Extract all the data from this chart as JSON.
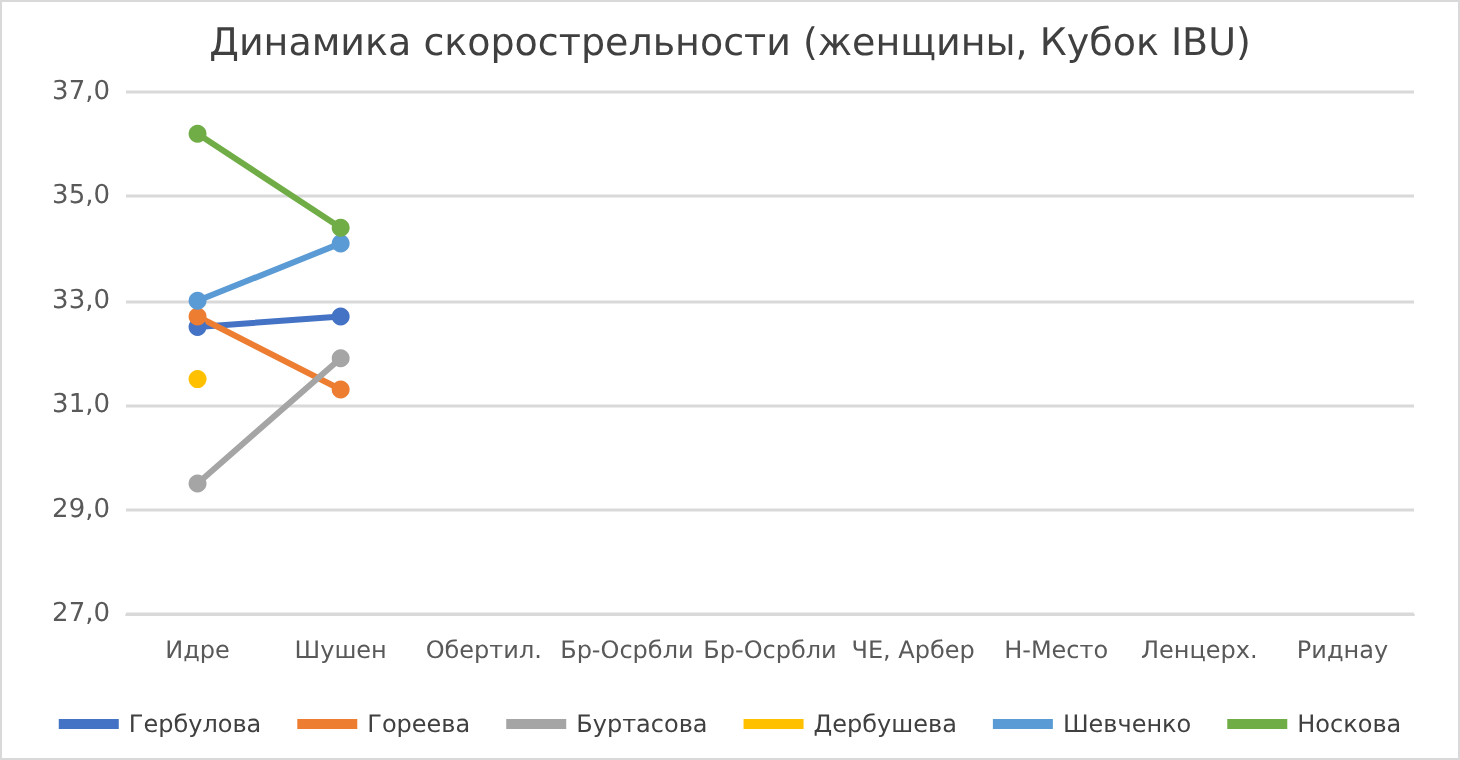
{
  "chart_data": {
    "type": "line",
    "title": "Динамика скорострельности (женщины, Кубок IBU)",
    "categories": [
      "Идре",
      "Шушен",
      "Обертил.",
      "Бр-Осрбли",
      "Бр-Осрбли",
      "ЧЕ, Арбер",
      "Н-Место",
      "Ленцерх.",
      "Риднау"
    ],
    "series": [
      {
        "name": "Гербулова",
        "color": "#4472c4",
        "values": [
          32.5,
          32.7,
          null,
          null,
          null,
          null,
          null,
          null,
          null
        ]
      },
      {
        "name": "Гореева",
        "color": "#ed7d31",
        "values": [
          32.7,
          31.3,
          null,
          null,
          null,
          null,
          null,
          null,
          null
        ]
      },
      {
        "name": "Буртасова",
        "color": "#a5a5a5",
        "values": [
          29.5,
          31.9,
          null,
          null,
          null,
          null,
          null,
          null,
          null
        ]
      },
      {
        "name": "Дербушева",
        "color": "#ffc000",
        "values": [
          31.5,
          null,
          null,
          null,
          null,
          null,
          null,
          null,
          null
        ]
      },
      {
        "name": "Шевченко",
        "color": "#5b9bd5",
        "values": [
          33.0,
          34.1,
          null,
          null,
          null,
          null,
          null,
          null,
          null
        ]
      },
      {
        "name": "Носкова",
        "color": "#70ad47",
        "values": [
          36.2,
          34.4,
          null,
          null,
          null,
          null,
          null,
          null,
          null
        ]
      }
    ],
    "ylim": [
      27,
      37
    ],
    "yticks": [
      {
        "value": 27,
        "label": "27,0"
      },
      {
        "value": 29,
        "label": "29,0"
      },
      {
        "value": 31,
        "label": "31,0"
      },
      {
        "value": 33,
        "label": "33,0"
      },
      {
        "value": 35,
        "label": "35,0"
      },
      {
        "value": 37,
        "label": "37,0"
      }
    ],
    "grid": "y",
    "legend": "bottom",
    "marker": "circle",
    "line_style": "solid"
  }
}
